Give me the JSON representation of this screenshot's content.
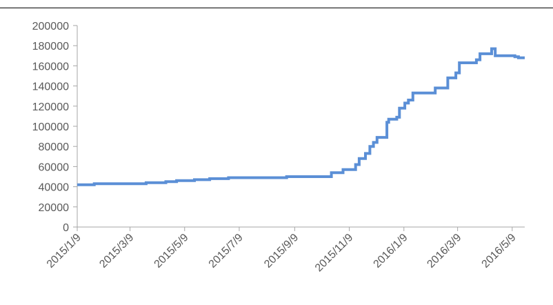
{
  "chart_data": {
    "type": "line",
    "title": "",
    "xlabel": "",
    "ylabel": "",
    "ylim": [
      0,
      200000
    ],
    "yticks": [
      0,
      20000,
      40000,
      60000,
      80000,
      100000,
      120000,
      140000,
      160000,
      180000,
      200000
    ],
    "ytick_labels": [
      "0",
      "20000",
      "40000",
      "60000",
      "80000",
      "100000",
      "120000",
      "140000",
      "160000",
      "180000",
      "200000"
    ],
    "xlim": [
      "2015-01-09",
      "2016-05-23"
    ],
    "xticks": [
      "2015-01-09",
      "2015-03-09",
      "2015-05-09",
      "2015-07-09",
      "2015-09-09",
      "2015-11-09",
      "2016-01-09",
      "2016-03-09",
      "2016-05-09"
    ],
    "xtick_labels": [
      "2015/1/9",
      "2015/3/9",
      "2015/5/9",
      "2015/7/9",
      "2015/9/9",
      "2015/11/9",
      "2016/1/9",
      "2016/3/9",
      "2016/5/9"
    ],
    "grid": false,
    "legend": "none",
    "line_color": "#5B8FD6",
    "axis_color": "#A6A6A6",
    "series": [
      {
        "step": true,
        "x": [
          "2015-01-09",
          "2015-01-28",
          "2015-03-27",
          "2015-04-18",
          "2015-04-30",
          "2015-05-20",
          "2015-06-06",
          "2015-06-27",
          "2015-08-31",
          "2015-10-20",
          "2015-11-02",
          "2015-11-16",
          "2015-11-20",
          "2015-11-27",
          "2015-12-02",
          "2015-12-06",
          "2015-12-10",
          "2015-12-21",
          "2015-12-23",
          "2016-01-01",
          "2016-01-04",
          "2016-01-10",
          "2016-01-14",
          "2016-01-19",
          "2016-01-25",
          "2016-02-13",
          "2016-02-27",
          "2016-03-07",
          "2016-03-11",
          "2016-03-17",
          "2016-03-30",
          "2016-04-03",
          "2016-04-14",
          "2016-04-16",
          "2016-04-20",
          "2016-05-12",
          "2016-05-16"
        ],
        "y": [
          42000,
          43000,
          44000,
          45000,
          46000,
          47000,
          48000,
          49000,
          50000,
          54000,
          57000,
          62000,
          68000,
          73000,
          80000,
          84000,
          89000,
          104000,
          107000,
          109000,
          118000,
          123000,
          126000,
          133000,
          133000,
          138000,
          148000,
          153000,
          163000,
          163000,
          166000,
          172000,
          172000,
          177000,
          170000,
          169000,
          168000
        ]
      }
    ]
  }
}
